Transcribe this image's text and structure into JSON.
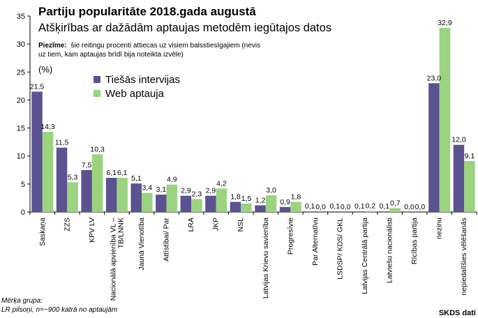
{
  "chart_data": {
    "type": "bar",
    "title": "Partiju popularitāte 2018.gada augustā",
    "subtitle": "Atšķirības ar dažādām aptaujas metodēm iegūtajos datos",
    "note_label": "Piezīme:",
    "note_line1": "šie reitingu procenti attiecas uz visiem balsstiesīgajiem (nevis",
    "note_line2": "uz tiem, kam aptaujas brīdī bija noteikta izvēle)",
    "ylabel": "(%)",
    "ylim": [
      0,
      35
    ],
    "yticks": [
      "0",
      "5",
      "10",
      "15",
      "20",
      "25",
      "30",
      "35"
    ],
    "grid": false,
    "legend_position": "top-left",
    "categories": [
      "Saskaņa",
      "ZZS",
      "KPV LV",
      "Nacionālā apvienība VL –",
      "Jaunā Vienotība",
      "Attīstībai/ Par",
      "LRA",
      "JKP",
      "NSL",
      "Latvijas Krievu savienība",
      "Progresīvie",
      "Par Alternatīvu",
      "LSDSP/ KDS/ GKL",
      "Latvijas Centrālā partija",
      "Latviešu nacionālisti",
      "Rīcības partija",
      "nezinu",
      "nepiedalīšies vēlēšanās"
    ],
    "category_line2": [
      "",
      "",
      "",
      "TB/LNNK",
      "",
      "",
      "",
      "",
      "",
      "",
      "",
      "",
      "",
      "",
      "",
      "",
      "",
      ""
    ],
    "series": [
      {
        "name": "Tiešās intervijas",
        "color": "#5b5291",
        "values": [
          21.5,
          11.5,
          7.5,
          6.1,
          5.1,
          3.1,
          2.9,
          2.9,
          1.8,
          1.2,
          0.9,
          0.1,
          0.1,
          0.1,
          0.1,
          0.0,
          23.0,
          12.0
        ],
        "labels": [
          "21,5",
          "11,5",
          "7,5",
          "6,1",
          "5,1",
          "3,1",
          "2,9",
          "2,9",
          "1,8",
          "1,2",
          "0,9",
          "0,1",
          "0,1",
          "0,1",
          "0,1",
          "0,0",
          "23,0",
          "12,0"
        ]
      },
      {
        "name": "Web aptauja",
        "color": "#9bd37f",
        "values": [
          14.3,
          5.3,
          10.3,
          6.1,
          3.4,
          4.9,
          2.3,
          4.2,
          1.5,
          3.0,
          1.8,
          0.0,
          0.0,
          0.2,
          0.7,
          0.0,
          32.9,
          9.1
        ],
        "labels": [
          "14,3",
          "5,3",
          "10,3",
          "6,1",
          "3,4",
          "4,9",
          "2,3",
          "4,2",
          "1,5",
          "3,0",
          "1,8",
          "0,0",
          "0,0",
          "0,2",
          "0,7",
          "0,0",
          "32,9",
          "9,1"
        ]
      }
    ],
    "footnote_line1": "Mērķa grupa:",
    "footnote_line2": "LR pilsoņi, n=~900 katrā no aptaujām",
    "source": "SKDS dati"
  }
}
